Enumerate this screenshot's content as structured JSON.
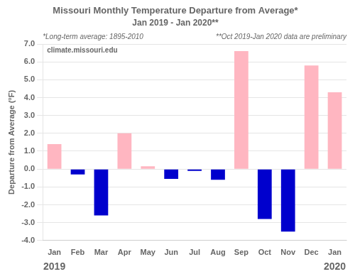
{
  "chart_data": {
    "type": "bar",
    "title": "Missouri Monthly Temperature Departure from Average*",
    "subtitle": "Jan 2019 - Jan 2020**",
    "y_label": "Departure from Average (°F)",
    "categories": [
      "Jan",
      "Feb",
      "Mar",
      "Apr",
      "May",
      "Jun",
      "Jul",
      "Aug",
      "Sep",
      "Oct",
      "Nov",
      "Dec",
      "Jan"
    ],
    "values": [
      1.4,
      -0.3,
      -2.6,
      2.0,
      0.15,
      -0.55,
      -0.1,
      -0.6,
      6.6,
      -2.8,
      -3.5,
      5.8,
      4.3
    ],
    "colors": [
      "#FFB6C1",
      "#0000CD",
      "#0000CD",
      "#FFB6C1",
      "#FFB6C1",
      "#0000CD",
      "#0000CD",
      "#0000CD",
      "#FFB6C1",
      "#0000CD",
      "#0000CD",
      "#FFB6C1",
      "#FFB6C1"
    ],
    "ylim": [
      -4.0,
      7.0
    ],
    "yticks": [
      {
        "value": -4.0,
        "label": "-4.0"
      },
      {
        "value": -3.0,
        "label": "-3.0"
      },
      {
        "value": -2.0,
        "label": "-2.0"
      },
      {
        "value": -1.0,
        "label": "-1.0"
      },
      {
        "value": 0.0,
        "label": "0.0"
      },
      {
        "value": 1.0,
        "label": "1.0"
      },
      {
        "value": 2.0,
        "label": "2.0"
      },
      {
        "value": 3.0,
        "label": "3.0"
      },
      {
        "value": 4.0,
        "label": "4.0"
      },
      {
        "value": 5.0,
        "label": "5.0"
      },
      {
        "value": 6.0,
        "label": "6.0"
      },
      {
        "value": 7.0,
        "label": "7.0"
      }
    ],
    "grid": true,
    "annotations": [
      "*Long-term average: 1895-2010",
      "**Oct 2019-Jan 2020 data are preliminary",
      "climate.missouri.edu",
      "2019",
      "2020"
    ]
  }
}
